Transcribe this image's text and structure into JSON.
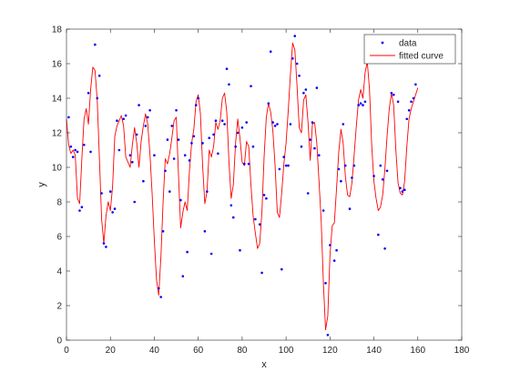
{
  "chart_data": {
    "type": "scatter",
    "xlabel": "x",
    "ylabel": "y",
    "xlim": [
      0,
      180
    ],
    "ylim": [
      0,
      18
    ],
    "xticks": [
      0,
      20,
      40,
      60,
      80,
      100,
      120,
      140,
      160,
      180
    ],
    "yticks": [
      0,
      2,
      4,
      6,
      8,
      10,
      12,
      14,
      16,
      18
    ],
    "grid": false,
    "legend_position": "top-right",
    "series": [
      {
        "name": "data",
        "kind": "scatter",
        "color": "#0000ff",
        "points": [
          [
            1,
            12.9
          ],
          [
            2,
            11.2
          ],
          [
            3,
            10.6
          ],
          [
            4,
            11.0
          ],
          [
            5,
            10.9
          ],
          [
            6,
            7.5
          ],
          [
            7,
            7.7
          ],
          [
            8,
            11.3
          ],
          [
            10,
            14.3
          ],
          [
            11,
            10.9
          ],
          [
            13,
            17.1
          ],
          [
            14,
            14.0
          ],
          [
            15,
            15.3
          ],
          [
            16,
            8.5
          ],
          [
            17,
            5.6
          ],
          [
            18,
            5.4
          ],
          [
            20,
            8.6
          ],
          [
            21,
            7.4
          ],
          [
            22,
            7.6
          ],
          [
            23,
            12.7
          ],
          [
            24,
            11.0
          ],
          [
            26,
            12.8
          ],
          [
            27,
            13.0
          ],
          [
            29,
            10.7
          ],
          [
            30,
            10.3
          ],
          [
            31,
            8.0
          ],
          [
            32,
            11.9
          ],
          [
            33,
            13.6
          ],
          [
            35,
            9.2
          ],
          [
            36,
            12.4
          ],
          [
            37,
            12.9
          ],
          [
            38,
            13.3
          ],
          [
            40,
            10.7
          ],
          [
            42,
            3.0
          ],
          [
            43,
            2.5
          ],
          [
            44,
            6.3
          ],
          [
            45,
            9.8
          ],
          [
            46,
            11.6
          ],
          [
            47,
            8.6
          ],
          [
            48,
            12.4
          ],
          [
            49,
            10.5
          ],
          [
            50,
            13.3
          ],
          [
            51,
            11.6
          ],
          [
            52,
            8.1
          ],
          [
            53,
            3.7
          ],
          [
            54,
            10.7
          ],
          [
            55,
            5.1
          ],
          [
            56,
            10.4
          ],
          [
            57,
            11.4
          ],
          [
            58,
            11.8
          ],
          [
            59,
            13.6
          ],
          [
            60,
            14.0
          ],
          [
            62,
            11.4
          ],
          [
            63,
            6.3
          ],
          [
            64,
            8.6
          ],
          [
            65,
            11.7
          ],
          [
            66,
            5.0
          ],
          [
            67,
            11.9
          ],
          [
            68,
            12.7
          ],
          [
            69,
            10.8
          ],
          [
            71,
            12.7
          ],
          [
            72,
            12.5
          ],
          [
            73,
            15.7
          ],
          [
            74,
            14.8
          ],
          [
            75,
            7.8
          ],
          [
            76,
            7.1
          ],
          [
            77,
            11.2
          ],
          [
            78,
            12.0
          ],
          [
            79,
            5.2
          ],
          [
            80,
            12.3
          ],
          [
            81,
            10.2
          ],
          [
            82,
            12.6
          ],
          [
            83,
            10.2
          ],
          [
            84,
            14.7
          ],
          [
            85,
            11.2
          ],
          [
            86,
            7.0
          ],
          [
            88,
            6.7
          ],
          [
            89,
            3.9
          ],
          [
            90,
            8.4
          ],
          [
            91,
            8.2
          ],
          [
            92,
            13.7
          ],
          [
            93,
            16.7
          ],
          [
            94,
            12.6
          ],
          [
            95,
            12.4
          ],
          [
            96,
            12.5
          ],
          [
            97,
            9.9
          ],
          [
            98,
            4.1
          ],
          [
            99,
            10.6
          ],
          [
            100,
            10.1
          ],
          [
            101,
            10.1
          ],
          [
            102,
            12.5
          ],
          [
            103,
            16.3
          ],
          [
            104,
            17.6
          ],
          [
            105,
            16.0
          ],
          [
            106,
            15.3
          ],
          [
            107,
            11.2
          ],
          [
            108,
            14.3
          ],
          [
            109,
            14.5
          ],
          [
            110,
            8.5
          ],
          [
            111,
            11.6
          ],
          [
            112,
            12.6
          ],
          [
            113,
            11.1
          ],
          [
            114,
            14.6
          ],
          [
            115,
            10.7
          ],
          [
            117,
            7.5
          ],
          [
            118,
            3.3
          ],
          [
            119,
            0.3
          ],
          [
            120,
            5.5
          ],
          [
            122,
            4.6
          ],
          [
            123,
            5.2
          ],
          [
            124,
            9.9
          ],
          [
            125,
            9.2
          ],
          [
            126,
            12.5
          ],
          [
            127,
            10.1
          ],
          [
            129,
            7.6
          ],
          [
            130,
            9.4
          ],
          [
            131,
            10.1
          ],
          [
            133,
            13.6
          ],
          [
            134,
            13.7
          ],
          [
            135,
            13.6
          ],
          [
            136,
            13.8
          ],
          [
            138,
            16.1
          ],
          [
            140,
            9.5
          ],
          [
            142,
            6.1
          ],
          [
            143,
            10.1
          ],
          [
            144,
            9.3
          ],
          [
            145,
            5.3
          ],
          [
            146,
            9.8
          ],
          [
            148,
            14.3
          ],
          [
            149,
            14.2
          ],
          [
            151,
            13.8
          ],
          [
            152,
            8.8
          ],
          [
            153,
            8.6
          ],
          [
            154,
            8.7
          ],
          [
            155,
            12.8
          ],
          [
            156,
            13.3
          ],
          [
            157,
            13.8
          ],
          [
            158,
            14.0
          ],
          [
            159,
            14.8
          ]
        ]
      },
      {
        "name": "fitted curve",
        "kind": "line",
        "color": "#ff0000",
        "points": [
          [
            0,
            12.8
          ],
          [
            1,
            11.3
          ],
          [
            2,
            10.8
          ],
          [
            3,
            11.0
          ],
          [
            4,
            10.7
          ],
          [
            5,
            8.2
          ],
          [
            6,
            7.9
          ],
          [
            7,
            10.5
          ],
          [
            8,
            12.8
          ],
          [
            9,
            13.4
          ],
          [
            10,
            12.5
          ],
          [
            11,
            14.5
          ],
          [
            12,
            15.8
          ],
          [
            13,
            15.6
          ],
          [
            14,
            13.9
          ],
          [
            15,
            10.5
          ],
          [
            16,
            7.0
          ],
          [
            17,
            5.6
          ],
          [
            18,
            7.2
          ],
          [
            19,
            8.0
          ],
          [
            20,
            7.5
          ],
          [
            21,
            8.9
          ],
          [
            22,
            11.8
          ],
          [
            23,
            12.4
          ],
          [
            24,
            12.7
          ],
          [
            25,
            13.0
          ],
          [
            26,
            12.4
          ],
          [
            27,
            10.6
          ],
          [
            28,
            10.3
          ],
          [
            29,
            10.0
          ],
          [
            30,
            11.3
          ],
          [
            31,
            12.3
          ],
          [
            32,
            11.4
          ],
          [
            33,
            10.0
          ],
          [
            34,
            11.5
          ],
          [
            35,
            12.4
          ],
          [
            36,
            13.1
          ],
          [
            37,
            12.5
          ],
          [
            38,
            10.8
          ],
          [
            39,
            8.5
          ],
          [
            40,
            5.8
          ],
          [
            41,
            3.5
          ],
          [
            42,
            2.6
          ],
          [
            43,
            4.8
          ],
          [
            44,
            8.0
          ],
          [
            45,
            10.5
          ],
          [
            46,
            10.2
          ],
          [
            47,
            10.8
          ],
          [
            48,
            11.7
          ],
          [
            49,
            12.7
          ],
          [
            50,
            12.9
          ],
          [
            51,
            9.6
          ],
          [
            52,
            6.5
          ],
          [
            53,
            7.4
          ],
          [
            54,
            8.0
          ],
          [
            55,
            7.5
          ],
          [
            56,
            9.8
          ],
          [
            57,
            11.4
          ],
          [
            58,
            12.2
          ],
          [
            59,
            13.8
          ],
          [
            60,
            14.2
          ],
          [
            61,
            13.1
          ],
          [
            62,
            10.1
          ],
          [
            63,
            7.9
          ],
          [
            64,
            8.6
          ],
          [
            65,
            11.0
          ],
          [
            66,
            10.6
          ],
          [
            67,
            11.2
          ],
          [
            68,
            12.6
          ],
          [
            69,
            12.2
          ],
          [
            70,
            12.7
          ],
          [
            71,
            14.0
          ],
          [
            72,
            14.3
          ],
          [
            73,
            13.2
          ],
          [
            74,
            10.3
          ],
          [
            75,
            8.2
          ],
          [
            76,
            9.0
          ],
          [
            77,
            11.4
          ],
          [
            78,
            12.8
          ],
          [
            79,
            11.7
          ],
          [
            80,
            10.3
          ],
          [
            81,
            10.1
          ],
          [
            82,
            11.5
          ],
          [
            83,
            11.2
          ],
          [
            84,
            9.0
          ],
          [
            85,
            7.2
          ],
          [
            86,
            6.2
          ],
          [
            87,
            5.3
          ],
          [
            88,
            5.6
          ],
          [
            89,
            7.4
          ],
          [
            90,
            10.6
          ],
          [
            91,
            12.9
          ],
          [
            92,
            13.7
          ],
          [
            93,
            13.2
          ],
          [
            94,
            12.1
          ],
          [
            95,
            10.1
          ],
          [
            96,
            7.4
          ],
          [
            97,
            7.1
          ],
          [
            98,
            8.5
          ],
          [
            99,
            10.2
          ],
          [
            100,
            11.4
          ],
          [
            101,
            13.3
          ],
          [
            102,
            15.4
          ],
          [
            103,
            17.2
          ],
          [
            104,
            16.8
          ],
          [
            105,
            14.7
          ],
          [
            106,
            12.3
          ],
          [
            107,
            12.0
          ],
          [
            108,
            13.9
          ],
          [
            109,
            14.2
          ],
          [
            110,
            12.6
          ],
          [
            111,
            10.4
          ],
          [
            112,
            12.5
          ],
          [
            113,
            12.6
          ],
          [
            114,
            11.4
          ],
          [
            115,
            9.2
          ],
          [
            116,
            6.9
          ],
          [
            117,
            3.3
          ],
          [
            118,
            0.6
          ],
          [
            119,
            1.4
          ],
          [
            120,
            4.9
          ],
          [
            121,
            6.6
          ],
          [
            122,
            6.8
          ],
          [
            123,
            8.8
          ],
          [
            124,
            10.9
          ],
          [
            125,
            12.2
          ],
          [
            126,
            11.4
          ],
          [
            127,
            9.5
          ],
          [
            128,
            8.4
          ],
          [
            129,
            8.3
          ],
          [
            130,
            9.1
          ],
          [
            131,
            10.7
          ],
          [
            132,
            12.4
          ],
          [
            133,
            13.9
          ],
          [
            134,
            14.5
          ],
          [
            135,
            14.0
          ],
          [
            136,
            15.5
          ],
          [
            137,
            16.1
          ],
          [
            138,
            14.5
          ],
          [
            139,
            11.3
          ],
          [
            140,
            9.2
          ],
          [
            141,
            8.2
          ],
          [
            142,
            7.5
          ],
          [
            143,
            7.7
          ],
          [
            144,
            8.4
          ],
          [
            145,
            9.9
          ],
          [
            146,
            11.8
          ],
          [
            147,
            13.4
          ],
          [
            148,
            14.3
          ],
          [
            149,
            13.6
          ],
          [
            150,
            11.0
          ],
          [
            151,
            9.1
          ],
          [
            152,
            8.5
          ],
          [
            153,
            8.4
          ],
          [
            154,
            9.2
          ],
          [
            155,
            11.2
          ],
          [
            156,
            12.8
          ],
          [
            157,
            13.4
          ],
          [
            158,
            13.8
          ],
          [
            159,
            14.2
          ],
          [
            160,
            14.6
          ]
        ]
      }
    ]
  }
}
